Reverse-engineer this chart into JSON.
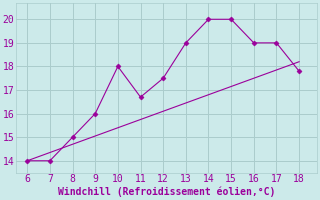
{
  "line1_x": [
    6,
    7,
    8,
    9,
    10,
    11,
    12,
    13,
    14,
    15,
    16,
    17,
    18
  ],
  "line1_y": [
    14,
    14,
    15,
    16,
    18,
    16.7,
    17.5,
    19,
    20,
    20,
    19,
    19,
    17.8
  ],
  "line2_x": [
    6,
    18
  ],
  "line2_y": [
    14,
    18.2
  ],
  "line_color": "#9b009b",
  "bg_color": "#cceaea",
  "grid_color": "#aacccc",
  "xlabel": "Windchill (Refroidissement éolien,°C)",
  "xlabel_color": "#9b009b",
  "xlabel_fontsize": 7,
  "tick_color": "#9b009b",
  "tick_fontsize": 7,
  "xlim": [
    5.5,
    18.8
  ],
  "ylim": [
    13.5,
    20.7
  ],
  "xticks": [
    6,
    7,
    8,
    9,
    10,
    11,
    12,
    13,
    14,
    15,
    16,
    17,
    18
  ],
  "yticks": [
    14,
    15,
    16,
    17,
    18,
    19,
    20
  ],
  "marker": "D",
  "marker_size": 2.5,
  "linewidth": 0.8
}
